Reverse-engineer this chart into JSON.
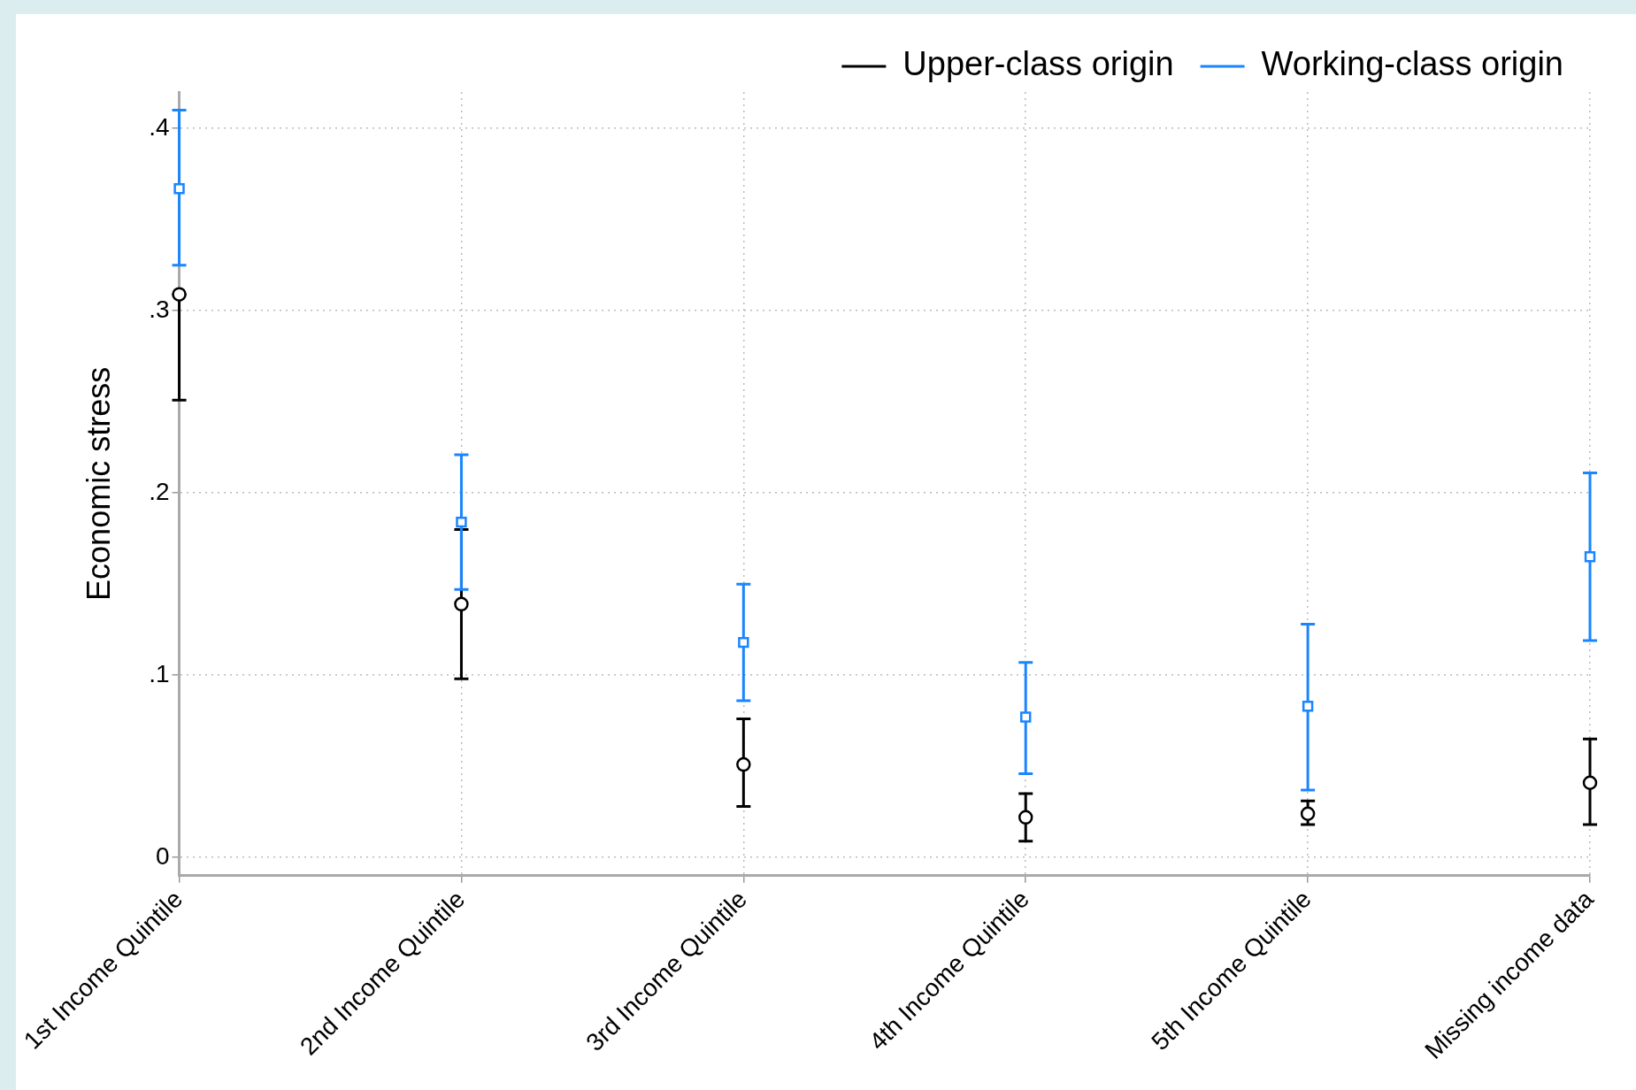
{
  "chart_data": {
    "type": "scatter",
    "ylabel": "Economic stress",
    "categories": [
      "1st Income Quintile",
      "2nd Income Quintile",
      "3rd Income Quintile",
      "4th Income Quintile",
      "5th Income Quintile",
      "Missing income data"
    ],
    "series": [
      {
        "name": "Upper-class origin",
        "color": "#000000",
        "marker": "circle",
        "values": [
          0.309,
          0.139,
          0.051,
          0.022,
          0.024,
          0.041
        ],
        "errors": [
          [
            0.251,
            0.309
          ],
          [
            0.098,
            0.18
          ],
          [
            0.028,
            0.076
          ],
          [
            0.009,
            0.035
          ],
          [
            0.018,
            0.031
          ],
          [
            0.018,
            0.065
          ]
        ]
      },
      {
        "name": "Working-class origin",
        "color": "#1a85ff",
        "marker": "square",
        "values": [
          0.367,
          0.184,
          0.118,
          0.077,
          0.083,
          0.165
        ],
        "errors": [
          [
            0.325,
            0.41
          ],
          [
            0.147,
            0.221
          ],
          [
            0.086,
            0.15
          ],
          [
            0.046,
            0.107
          ],
          [
            0.037,
            0.128
          ],
          [
            0.119,
            0.211
          ]
        ]
      }
    ],
    "ylim": [
      -0.01,
      0.42
    ],
    "yticks": [
      0,
      {
        "value": 0.1,
        "label": ".1"
      },
      {
        "value": 0.2,
        "label": ".2"
      },
      {
        "value": 0.3,
        "label": ".3"
      },
      {
        "value": 0.4,
        "label": ".4"
      }
    ],
    "grid": true,
    "legend": "top right"
  }
}
